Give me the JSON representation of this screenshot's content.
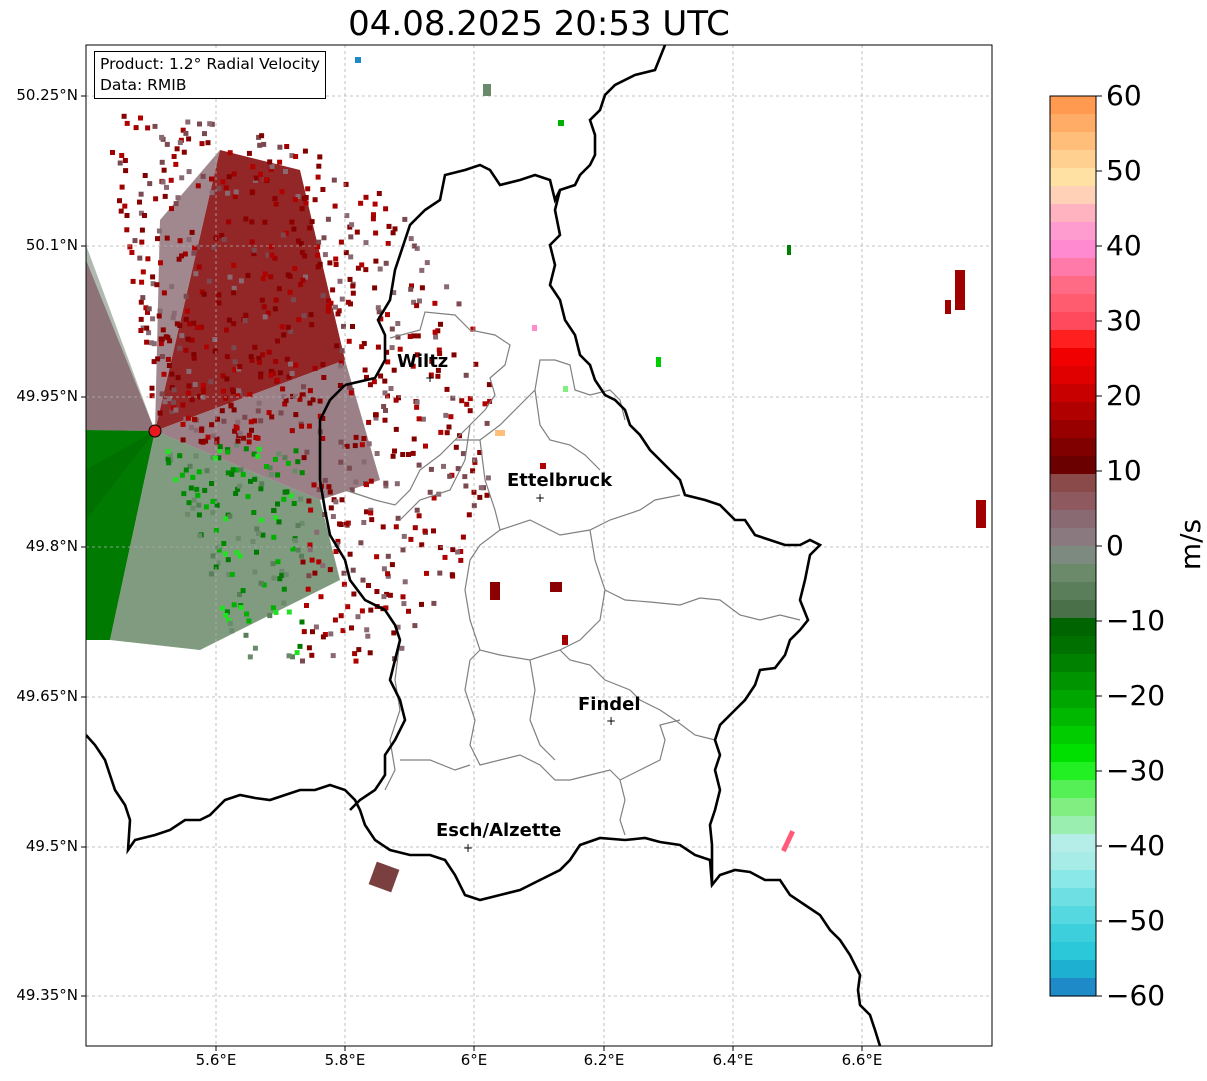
{
  "title": "04.08.2025 20:53 UTC",
  "info": {
    "product": "Product: 1.2° Radial Velocity",
    "source": "Data: RMIB"
  },
  "axes": {
    "lat_ticks": [
      "50.25°N",
      "50.1°N",
      "49.95°N",
      "49.8°N",
      "49.65°N",
      "49.5°N",
      "49.35°N"
    ],
    "lon_ticks": [
      "5.6°E",
      "5.8°E",
      "6°E",
      "6.2°E",
      "6.4°E",
      "6.6°E"
    ],
    "grid": true
  },
  "cities": [
    {
      "name": "Wiltz",
      "lon": 5.93,
      "lat": 49.966
    },
    {
      "name": "Ettelbruck",
      "lon": 6.1,
      "lat": 49.847
    },
    {
      "name": "Findel",
      "lon": 6.21,
      "lat": 49.626
    },
    {
      "name": "Esch/Alzette",
      "lon": 5.99,
      "lat": 49.498
    }
  ],
  "radar_site": {
    "lon": 5.505,
    "lat": 49.914,
    "color": "#e8191c"
  },
  "colorbar": {
    "unit": "m/s",
    "ticks": [
      "60",
      "50",
      "40",
      "30",
      "20",
      "10",
      "0",
      "−10",
      "−20",
      "−30",
      "−40",
      "−50",
      "−60"
    ],
    "range": [
      -60,
      60
    ],
    "colors": [
      "#ff9a50",
      "#ffad66",
      "#ffbf7a",
      "#ffd08f",
      "#ffe2a3",
      "#ffd2b8",
      "#ffb3c0",
      "#ff9ccf",
      "#ff8ad0",
      "#ff7aa8",
      "#ff6b84",
      "#ff5c70",
      "#ff4a5e",
      "#ff1f1f",
      "#f00000",
      "#e00000",
      "#c80000",
      "#b00000",
      "#980000",
      "#800000",
      "#6b0000",
      "#8a4a4a",
      "#8f5a5f",
      "#8a6a72",
      "#8a7a80",
      "#7d8a80",
      "#6a8a6a",
      "#5a7d5a",
      "#4a704a",
      "#006400",
      "#007000",
      "#008200",
      "#009400",
      "#00a600",
      "#00b800",
      "#00cc00",
      "#00e000",
      "#22f022",
      "#55f055",
      "#80ee80",
      "#9aeeb0",
      "#b5eee8",
      "#a8ece8",
      "#8ae8e8",
      "#6ee0e4",
      "#55d8e0",
      "#3dd0dc",
      "#2ac8d8",
      "#1eb0d0",
      "#1e8ac8"
    ]
  },
  "colors": {
    "border": "#000000",
    "cantons": "#808080",
    "grid": "#b0b0b0",
    "vel_neg_strong": "#007a00",
    "vel_neg_weak": "#6b8a6b",
    "vel_zero": "#8a6a72",
    "vel_pos_strong": "#8b0000"
  }
}
